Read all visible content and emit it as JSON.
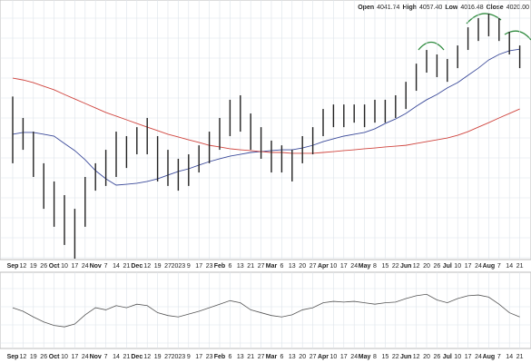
{
  "chart_data": {
    "type": "ohlc",
    "header": [
      {
        "label": "Open",
        "value": "4041.74"
      },
      {
        "label": "High",
        "value": "4057.40"
      },
      {
        "label": "Low",
        "value": "4016.48"
      },
      {
        "label": "Close",
        "value": "4020.00"
      }
    ],
    "categories": [
      "Sep",
      "12",
      "19",
      "26",
      "Oct",
      "10",
      "17",
      "24",
      "Nov",
      "7",
      "14",
      "21",
      "Dec",
      "12",
      "19",
      "27",
      "2023",
      "9",
      "17",
      "23",
      "Feb",
      "6",
      "13",
      "21",
      "27",
      "Mar",
      "6",
      "13",
      "20",
      "27",
      "Apr",
      "10",
      "17",
      "24",
      "May",
      "8",
      "15",
      "22",
      "Jun",
      "12",
      "20",
      "26",
      "Jul",
      "10",
      "17",
      "24",
      "Aug",
      "7",
      "14",
      "21"
    ],
    "high": [
      4244,
      4139,
      4072,
      3917,
      3828,
      3761,
      3694,
      3850,
      3917,
      3983,
      4072,
      4050,
      4094,
      4139,
      4050,
      3983,
      3939,
      3961,
      4005,
      4072,
      4139,
      4228,
      4250,
      4161,
      4094,
      4028,
      4005,
      3983,
      4050,
      4094,
      4183,
      4205,
      4205,
      4205,
      4205,
      4228,
      4228,
      4250,
      4316,
      4405,
      4472,
      4450,
      4428,
      4494,
      4583,
      4628,
      4650,
      4628,
      4561,
      4494
    ],
    "low": [
      3917,
      3983,
      3850,
      3694,
      3606,
      3517,
      3450,
      3606,
      3783,
      3806,
      3850,
      3894,
      3961,
      3961,
      3828,
      3806,
      3783,
      3806,
      3872,
      3917,
      3983,
      4050,
      4072,
      3983,
      3939,
      3872,
      3872,
      3828,
      3917,
      3961,
      4050,
      4094,
      4094,
      4116,
      4094,
      4116,
      4116,
      4139,
      4183,
      4272,
      4361,
      4339,
      4316,
      4383,
      4472,
      4516,
      4539,
      4516,
      4450,
      4383
    ],
    "bar_color": "#222222",
    "series": [
      {
        "color": "#3b4a9a",
        "values": [
          4059,
          4068,
          4068,
          4059,
          4050,
          4014,
          3979,
          3934,
          3881,
          3841,
          3810,
          3814,
          3819,
          3828,
          3841,
          3859,
          3877,
          3890,
          3908,
          3925,
          3939,
          3952,
          3961,
          3970,
          3974,
          3979,
          3983,
          3983,
          3992,
          4005,
          4023,
          4037,
          4050,
          4059,
          4068,
          4086,
          4112,
          4134,
          4161,
          4196,
          4228,
          4254,
          4286,
          4312,
          4348,
          4383,
          4423,
          4450,
          4468,
          4476
        ]
      },
      {
        "color": "#d0453f",
        "values": [
          4334,
          4325,
          4312,
          4294,
          4277,
          4254,
          4232,
          4210,
          4188,
          4166,
          4148,
          4130,
          4112,
          4094,
          4077,
          4059,
          4046,
          4032,
          4019,
          4005,
          3997,
          3988,
          3983,
          3979,
          3974,
          3970,
          3970,
          3966,
          3966,
          3966,
          3970,
          3974,
          3979,
          3983,
          3988,
          3992,
          3997,
          4001,
          4005,
          4014,
          4023,
          4032,
          4041,
          4054,
          4072,
          4094,
          4116,
          4139,
          4161,
          4183
        ]
      }
    ],
    "ylim": [
      3450,
      4650
    ],
    "rsi": {
      "color": "#555555",
      "values": [
        55,
        50,
        42,
        35,
        30,
        28,
        32,
        45,
        55,
        52,
        58,
        55,
        60,
        58,
        48,
        44,
        42,
        46,
        50,
        55,
        60,
        65,
        62,
        52,
        48,
        44,
        42,
        45,
        52,
        55,
        62,
        64,
        63,
        64,
        62,
        60,
        62,
        63,
        68,
        72,
        74,
        66,
        62,
        68,
        72,
        73,
        70,
        60,
        48,
        42
      ],
      "ylim": [
        0,
        100
      ]
    },
    "grid": true
  }
}
